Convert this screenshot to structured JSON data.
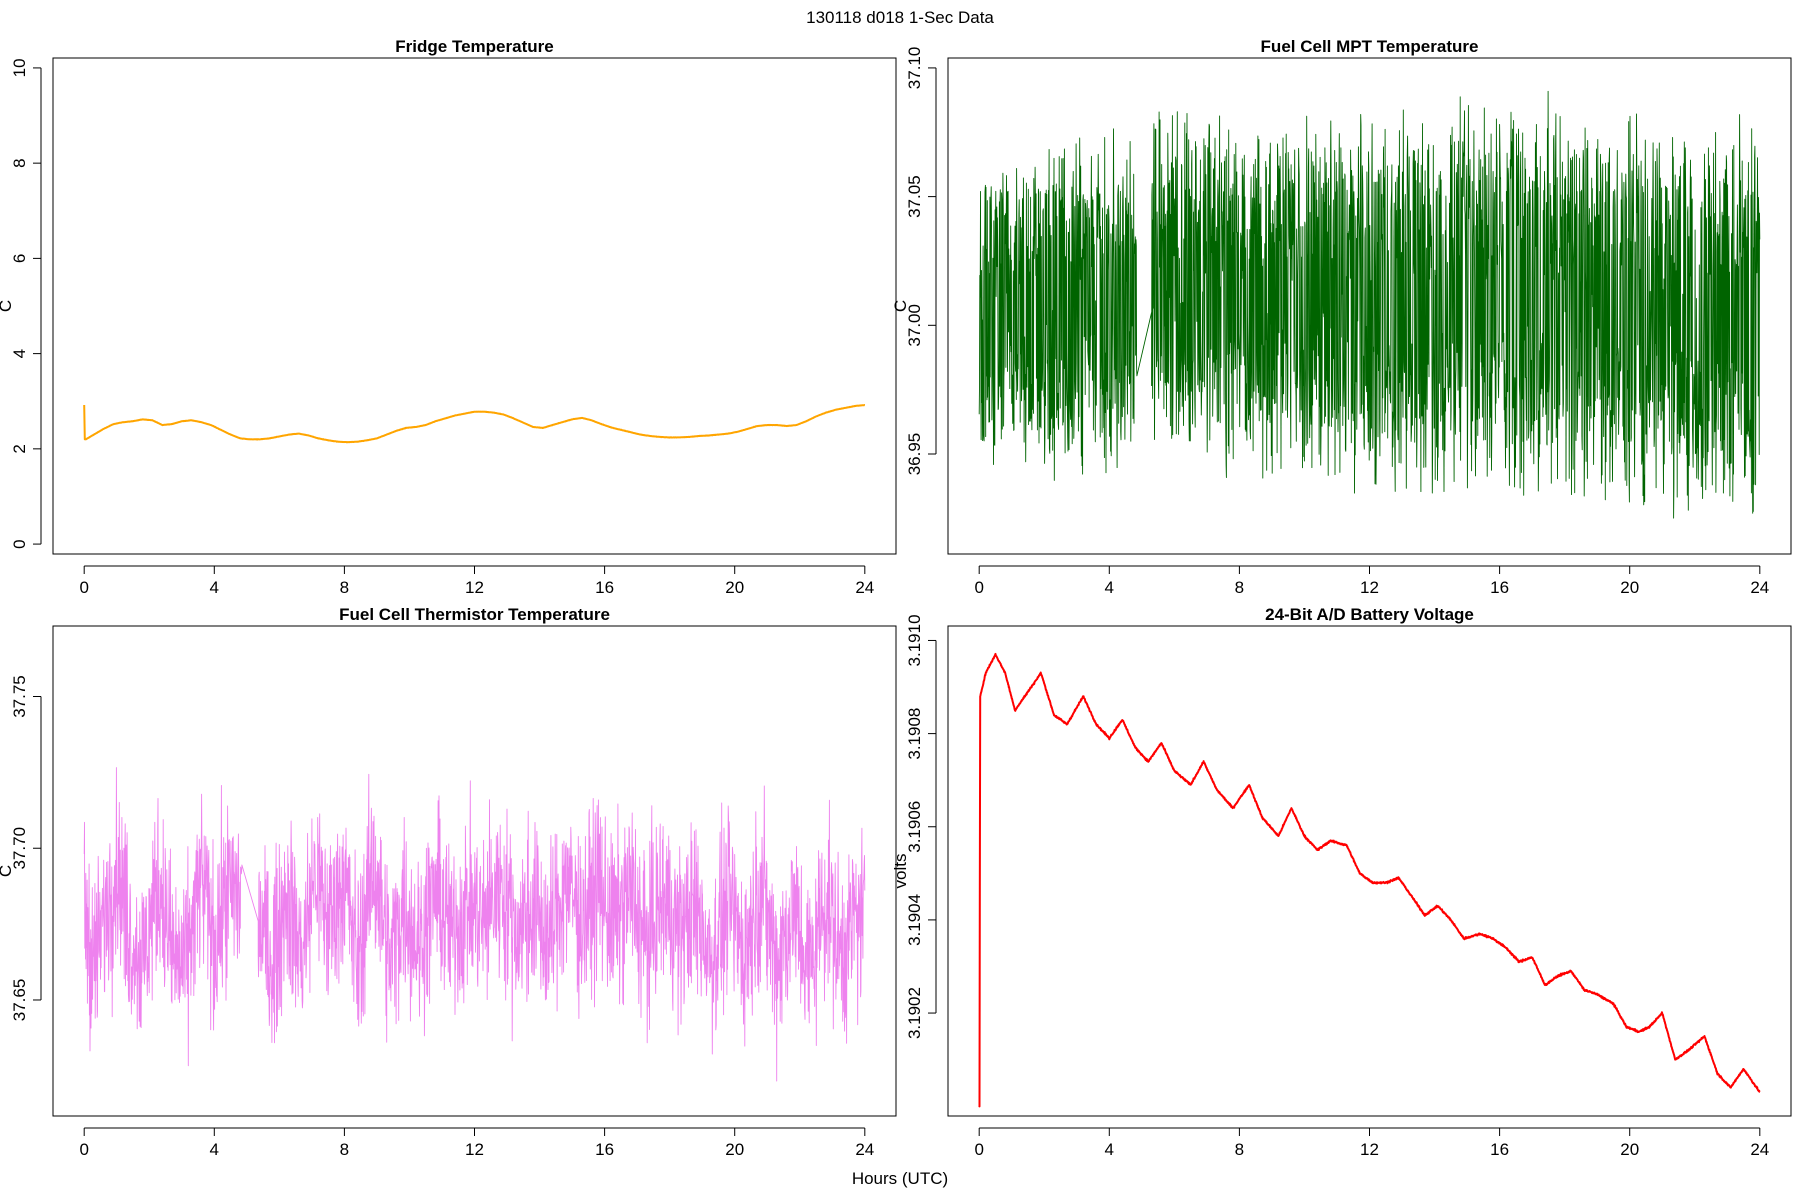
{
  "figure": {
    "title": "130118   d018   1-Sec Data",
    "xlabel": "Hours (UTC)"
  },
  "chart_data": [
    {
      "type": "line",
      "title": "Fridge Temperature",
      "ylabel": "C",
      "xlabel": "Hours (UTC)",
      "color": "#FFA500",
      "xlim": [
        0,
        24
      ],
      "ylim": [
        0,
        10
      ],
      "xticks": [
        0,
        4,
        8,
        12,
        16,
        20,
        24
      ],
      "yticks": [
        0,
        2,
        4,
        6,
        8,
        10
      ],
      "ytick_labels": [
        "0",
        "2",
        "4",
        "6",
        "8",
        "10"
      ],
      "noise": 0.01,
      "series": [
        {
          "name": "Fridge Temperature",
          "x": [
            0,
            0.02,
            0.05,
            0.3,
            0.6,
            0.9,
            1.2,
            1.5,
            1.8,
            2.1,
            2.4,
            2.7,
            3.0,
            3.3,
            3.6,
            3.9,
            4.2,
            4.5,
            4.8,
            5.1,
            5.4,
            5.7,
            6.0,
            6.3,
            6.6,
            6.9,
            7.2,
            7.5,
            7.8,
            8.1,
            8.4,
            8.7,
            9.0,
            9.3,
            9.6,
            9.9,
            10.2,
            10.5,
            10.8,
            11.1,
            11.4,
            11.7,
            12.0,
            12.3,
            12.6,
            12.9,
            13.2,
            13.5,
            13.8,
            14.1,
            14.4,
            14.7,
            15.0,
            15.3,
            15.6,
            15.9,
            16.2,
            16.5,
            16.8,
            17.1,
            17.4,
            17.7,
            18.0,
            18.3,
            18.6,
            18.9,
            19.2,
            19.5,
            19.8,
            20.1,
            20.4,
            20.7,
            21.0,
            21.3,
            21.6,
            21.9,
            22.2,
            22.5,
            22.8,
            23.1,
            23.4,
            23.7,
            24.0
          ],
          "y": [
            2.92,
            2.2,
            2.2,
            2.3,
            2.42,
            2.52,
            2.56,
            2.58,
            2.62,
            2.6,
            2.5,
            2.52,
            2.58,
            2.6,
            2.56,
            2.5,
            2.4,
            2.3,
            2.22,
            2.2,
            2.2,
            2.22,
            2.26,
            2.3,
            2.32,
            2.28,
            2.22,
            2.18,
            2.15,
            2.14,
            2.15,
            2.18,
            2.22,
            2.3,
            2.38,
            2.44,
            2.46,
            2.5,
            2.58,
            2.64,
            2.7,
            2.74,
            2.78,
            2.78,
            2.76,
            2.72,
            2.64,
            2.55,
            2.46,
            2.44,
            2.5,
            2.56,
            2.62,
            2.65,
            2.6,
            2.52,
            2.45,
            2.4,
            2.35,
            2.3,
            2.27,
            2.25,
            2.24,
            2.24,
            2.25,
            2.27,
            2.28,
            2.3,
            2.32,
            2.36,
            2.42,
            2.48,
            2.5,
            2.5,
            2.48,
            2.5,
            2.58,
            2.68,
            2.76,
            2.82,
            2.86,
            2.9,
            2.92
          ]
        }
      ]
    },
    {
      "type": "line",
      "title": "Fuel Cell MPT Temperature",
      "ylabel": "C",
      "xlabel": "Hours (UTC)",
      "color": "#006400",
      "xlim": [
        0,
        24
      ],
      "ylim": [
        36.915,
        37.1
      ],
      "xticks": [
        0,
        4,
        8,
        12,
        16,
        20,
        24
      ],
      "yticks": [
        36.95,
        37.0,
        37.05,
        37.1
      ],
      "ytick_labels": [
        "36.95",
        "37.00",
        "37.05",
        "37.10"
      ],
      "noise": 0.028,
      "gap": [
        4.85,
        5.3
      ],
      "series": [
        {
          "name": "Fuel Cell MPT Temperature",
          "x": [
            0,
            4,
            4.85,
            5.3,
            8,
            12,
            16,
            20,
            24
          ],
          "y": [
            37.005,
            37.005,
            37.005,
            37.005,
            37.005,
            37.005,
            37.005,
            37.005,
            37.005
          ],
          "min": [
            36.938,
            36.935,
            36.95,
            36.94,
            36.935,
            36.932,
            36.928,
            36.926,
            36.918
          ],
          "max": [
            37.072,
            37.08,
            37.075,
            37.095,
            37.085,
            37.084,
            37.097,
            37.088,
            37.086
          ]
        }
      ]
    },
    {
      "type": "line",
      "title": "Fuel Cell Thermistor Temperature",
      "ylabel": "C",
      "xlabel": "Hours (UTC)",
      "color": "#EE82EE",
      "xlim": [
        0,
        24
      ],
      "ylim": [
        37.615,
        37.77
      ],
      "xticks": [
        0,
        4,
        8,
        12,
        16,
        20,
        24
      ],
      "yticks": [
        37.65,
        37.7,
        37.75
      ],
      "ytick_labels": [
        "37.65",
        "37.70",
        "37.75"
      ],
      "noise": 0.022,
      "gap": [
        4.85,
        5.35
      ],
      "series": [
        {
          "name": "Fuel Cell Thermistor Temperature",
          "x": [
            0,
            0.3,
            0.6,
            1.0,
            1.4,
            1.8,
            2.3,
            2.7,
            3.1,
            3.6,
            4.0,
            4.4,
            4.85,
            5.35,
            5.8,
            6.2,
            6.7,
            7.1,
            7.5,
            8.0,
            8.4,
            8.9,
            9.4,
            9.8,
            10.3,
            10.8,
            11.3,
            11.8,
            12.3,
            12.8,
            13.3,
            13.8,
            14.3,
            14.8,
            15.3,
            15.8,
            16.3,
            16.8,
            17.3,
            17.8,
            18.3,
            18.8,
            19.3,
            19.8,
            20.3,
            20.8,
            21.3,
            21.8,
            22.3,
            22.8,
            23.3,
            23.7,
            24.0
          ],
          "y": [
            37.68,
            37.662,
            37.675,
            37.695,
            37.672,
            37.662,
            37.69,
            37.665,
            37.66,
            37.69,
            37.668,
            37.686,
            37.684,
            37.676,
            37.662,
            37.685,
            37.665,
            37.692,
            37.675,
            37.69,
            37.662,
            37.695,
            37.662,
            37.682,
            37.668,
            37.686,
            37.672,
            37.682,
            37.676,
            37.688,
            37.672,
            37.681,
            37.668,
            37.69,
            37.676,
            37.688,
            37.674,
            37.686,
            37.668,
            37.684,
            37.672,
            37.68,
            37.664,
            37.683,
            37.665,
            37.688,
            37.662,
            37.68,
            37.66,
            37.684,
            37.664,
            37.678,
            37.676
          ]
        }
      ]
    },
    {
      "type": "line",
      "title": "24-Bit A/D Battery Voltage",
      "ylabel": "volts",
      "xlabel": "Hours (UTC)",
      "color": "#FF0000",
      "xlim": [
        0,
        24
      ],
      "ylim": [
        3.19,
        3.19101
      ],
      "xticks": [
        0,
        4,
        8,
        12,
        16,
        20,
        24
      ],
      "yticks": [
        3.1902,
        3.1904,
        3.1906,
        3.1908,
        3.191
      ],
      "ytick_labels": [
        "3.1902",
        "3.1904",
        "3.1906",
        "3.1908",
        "3.1910"
      ],
      "noise": 1.5e-06,
      "series": [
        {
          "name": "24-Bit A/D Battery Voltage",
          "x": [
            0,
            0.01,
            0.03,
            0.2,
            0.5,
            0.8,
            1.1,
            1.4,
            1.9,
            2.3,
            2.7,
            3.2,
            3.6,
            4.0,
            4.4,
            4.8,
            5.2,
            5.6,
            6.0,
            6.5,
            6.9,
            7.3,
            7.8,
            8.3,
            8.7,
            9.2,
            9.6,
            10.0,
            10.4,
            10.8,
            11.3,
            11.7,
            12.1,
            12.5,
            12.9,
            13.3,
            13.7,
            14.1,
            14.5,
            14.9,
            15.4,
            15.8,
            16.2,
            16.6,
            17.0,
            17.4,
            17.8,
            18.2,
            18.6,
            19.0,
            19.5,
            19.9,
            20.3,
            20.6,
            21.0,
            21.4,
            21.8,
            22.3,
            22.7,
            23.1,
            23.5,
            24.0
          ],
          "y": [
            3.19,
            3.19,
            3.19088,
            3.19093,
            3.19097,
            3.19093,
            3.19085,
            3.19088,
            3.19093,
            3.19084,
            3.19082,
            3.19088,
            3.19082,
            3.19079,
            3.19083,
            3.19077,
            3.19074,
            3.19078,
            3.19072,
            3.19069,
            3.19074,
            3.19068,
            3.19064,
            3.19069,
            3.19062,
            3.19058,
            3.19064,
            3.19058,
            3.19055,
            3.19057,
            3.19056,
            3.1905,
            3.19048,
            3.19048,
            3.19049,
            3.19045,
            3.19041,
            3.19043,
            3.1904,
            3.19036,
            3.19037,
            3.19036,
            3.19034,
            3.19031,
            3.19032,
            3.19026,
            3.19028,
            3.19029,
            3.19025,
            3.19024,
            3.19022,
            3.19017,
            3.19016,
            3.19017,
            3.1902,
            3.1901,
            3.19012,
            3.19015,
            3.19007,
            3.19004,
            3.19008,
            3.19003
          ]
        }
      ]
    }
  ]
}
